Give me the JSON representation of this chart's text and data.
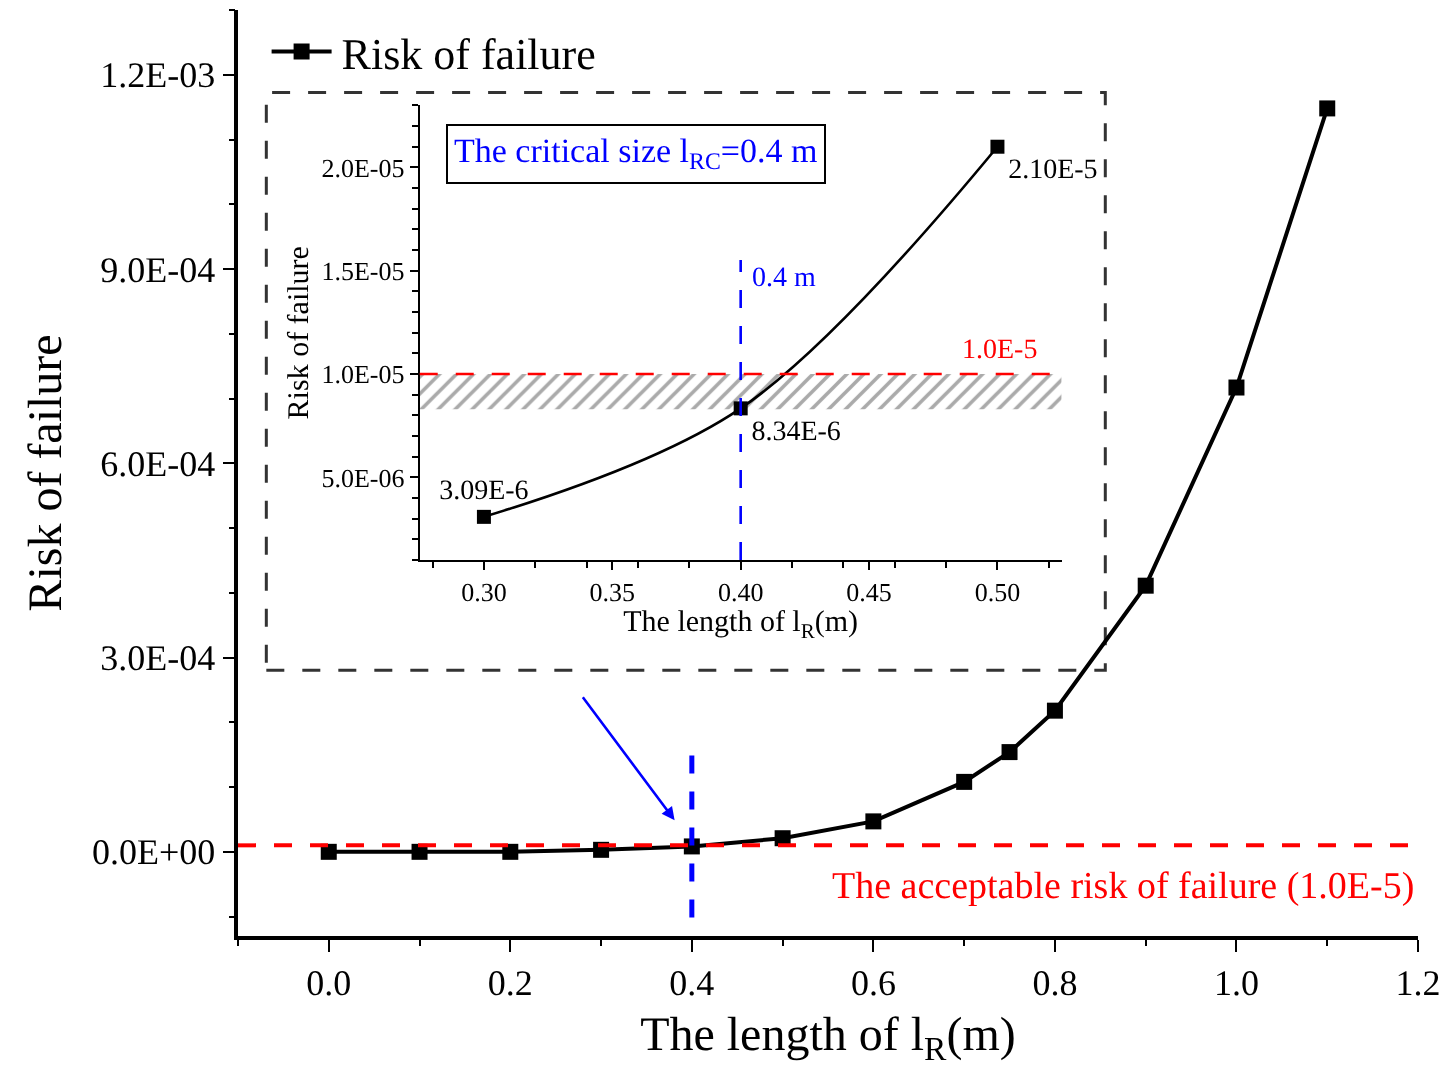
{
  "chart_data": [
    {
      "type": "line",
      "xlabel": "The length of l$_{R}$(m)",
      "ylabel": "Risk of failure",
      "x": [
        0.0,
        0.1,
        0.2,
        0.3,
        0.4,
        0.5,
        0.6,
        0.7,
        0.75,
        0.8,
        0.9,
        1.0,
        1.1
      ],
      "series": [
        {
          "name": "Risk of failure",
          "color": "#000000",
          "values": [
            0.0,
            0.0,
            0.0,
            3.09e-06,
            8.34e-06,
            2.1e-05,
            4.7e-05,
            0.000108,
            0.000154,
            0.000218,
            0.000411,
            0.000717,
            0.001148
          ]
        }
      ],
      "xlim": [
        -0.1,
        1.2
      ],
      "ylim": [
        -0.00013,
        0.0013
      ],
      "xticks": [
        {
          "value": 0,
          "label": "0.0"
        },
        {
          "value": 0.2,
          "label": "0.2"
        },
        {
          "value": 0.4,
          "label": "0.4"
        },
        {
          "value": 0.6,
          "label": "0.6"
        },
        {
          "value": 0.8,
          "label": "0.8"
        },
        {
          "value": 1.0,
          "label": "1.0"
        },
        {
          "value": 1.2,
          "label": "1.2"
        }
      ],
      "yticks": [
        {
          "value": 0,
          "label": "0.0E+00"
        },
        {
          "value": 0.0003,
          "label": "3.0E-04"
        },
        {
          "value": 0.0006,
          "label": "6.0E-04"
        },
        {
          "value": 0.0009,
          "label": "9.0E-04"
        },
        {
          "value": 0.0012,
          "label": "1.2E-03"
        }
      ],
      "ref_lines": [
        {
          "axis": "y",
          "value": 1e-05,
          "label": "The acceptable risk of failure (1.0E-5)",
          "color": "#ff0000",
          "line_style": "dashed"
        },
        {
          "axis": "x",
          "value": 0.4,
          "label": null,
          "color": "#0000ff",
          "line_style": "dashed"
        }
      ],
      "legend": "top left",
      "marker": "square",
      "line_style": "solid"
    },
    {
      "type": "line",
      "xlabel": "The length of l$_{R}$(m)",
      "ylabel": "Risk of failure",
      "x": [
        0.3,
        0.4,
        0.5
      ],
      "series": [
        {
          "color": "#000000",
          "values": [
            3.09e-06,
            8.34e-06,
            2.1e-05
          ],
          "value_labels": [
            "3.09E-6",
            "8.34E-6",
            "2.10E-5"
          ]
        }
      ],
      "xlim": [
        0.275,
        0.525
      ],
      "ylim": [
        1e-06,
        2.3e-05
      ],
      "xticks": [
        {
          "value": 0.3,
          "label": "0.30"
        },
        {
          "value": 0.35,
          "label": "0.35"
        },
        {
          "value": 0.4,
          "label": "0.40"
        },
        {
          "value": 0.45,
          "label": "0.45"
        },
        {
          "value": 0.5,
          "label": "0.50"
        }
      ],
      "yticks": [
        {
          "value": 5e-06,
          "label": "5.0E-06"
        },
        {
          "value": 1e-05,
          "label": "1.0E-05"
        },
        {
          "value": 1.5e-05,
          "label": "1.5E-05"
        },
        {
          "value": 2e-05,
          "label": "2.0E-05"
        }
      ],
      "ref_lines": [
        {
          "axis": "y",
          "value": 1e-05,
          "label": "1.0E-5",
          "color": "#ff0000",
          "line_style": "dashed"
        },
        {
          "axis": "x",
          "value": 0.4,
          "label": "0.4 m",
          "color": "#0000ff",
          "line_style": "dashed"
        }
      ],
      "bands": [
        {
          "axis": "y",
          "from": 8.3e-06,
          "to": 1e-05,
          "color": "#555555"
        }
      ],
      "annotations": [
        "The critical size l$_{RC}$=0.4 m"
      ],
      "marker": "square",
      "line_style": "solid"
    }
  ]
}
